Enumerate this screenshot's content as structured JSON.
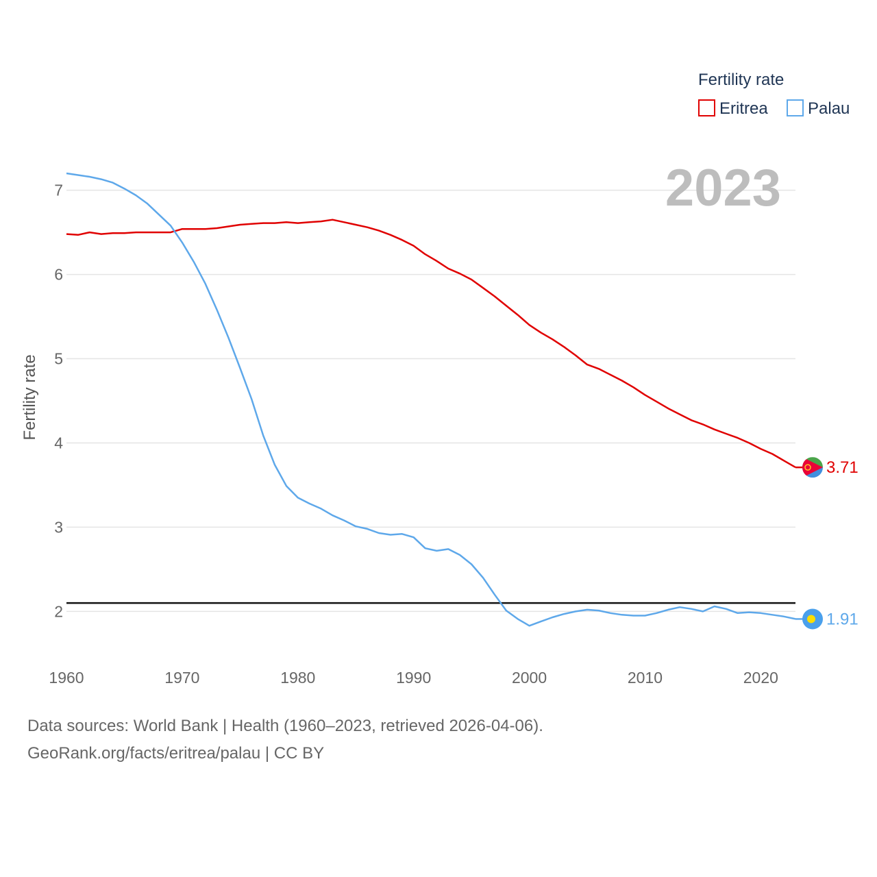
{
  "chart_data": {
    "type": "line",
    "title": "Fertility rate",
    "ylabel": "Fertility rate",
    "xlabel": "",
    "current_year": "2023",
    "xlim": [
      1960,
      2023
    ],
    "ylim": [
      1.45,
      7.55
    ],
    "y_ticks": [
      2,
      3,
      4,
      5,
      6,
      7
    ],
    "x_ticks": [
      1960,
      1970,
      1980,
      1990,
      2000,
      2010,
      2020
    ],
    "reference_line": 2.1,
    "x": [
      1960,
      1961,
      1962,
      1963,
      1964,
      1965,
      1966,
      1967,
      1968,
      1969,
      1970,
      1971,
      1972,
      1973,
      1974,
      1975,
      1976,
      1977,
      1978,
      1979,
      1980,
      1981,
      1982,
      1983,
      1984,
      1985,
      1986,
      1987,
      1988,
      1989,
      1990,
      1991,
      1992,
      1993,
      1994,
      1995,
      1996,
      1997,
      1998,
      1999,
      2000,
      2001,
      2002,
      2003,
      2004,
      2005,
      2006,
      2007,
      2008,
      2009,
      2010,
      2011,
      2012,
      2013,
      2014,
      2015,
      2016,
      2017,
      2018,
      2019,
      2020,
      2021,
      2022,
      2023
    ],
    "series": [
      {
        "name": "Eritrea",
        "color": "#e00000",
        "end_label": "3.71",
        "flag": "eritrea-flag",
        "values": [
          6.48,
          6.47,
          6.5,
          6.48,
          6.49,
          6.49,
          6.5,
          6.5,
          6.5,
          6.5,
          6.54,
          6.54,
          6.54,
          6.55,
          6.57,
          6.59,
          6.6,
          6.61,
          6.61,
          6.62,
          6.61,
          6.62,
          6.63,
          6.65,
          6.62,
          6.59,
          6.56,
          6.52,
          6.47,
          6.41,
          6.34,
          6.24,
          6.16,
          6.07,
          6.01,
          5.94,
          5.84,
          5.74,
          5.63,
          5.52,
          5.4,
          5.31,
          5.23,
          5.14,
          5.04,
          4.93,
          4.88,
          4.81,
          4.74,
          4.66,
          4.57,
          4.49,
          4.41,
          4.34,
          4.27,
          4.22,
          4.16,
          4.11,
          4.06,
          4.0,
          3.93,
          3.87,
          3.79,
          3.71
        ]
      },
      {
        "name": "Palau",
        "color": "#5ea8ea",
        "end_label": "1.91",
        "flag": "palau-flag",
        "values": [
          7.2,
          7.18,
          7.16,
          7.13,
          7.09,
          7.02,
          6.94,
          6.84,
          6.71,
          6.58,
          6.38,
          6.15,
          5.89,
          5.58,
          5.25,
          4.89,
          4.52,
          4.09,
          3.74,
          3.49,
          3.35,
          3.28,
          3.22,
          3.14,
          3.08,
          3.01,
          2.98,
          2.93,
          2.91,
          2.92,
          2.88,
          2.75,
          2.72,
          2.74,
          2.67,
          2.56,
          2.4,
          2.2,
          2.01,
          1.91,
          1.83,
          1.88,
          1.93,
          1.97,
          2.0,
          2.02,
          2.01,
          1.98,
          1.96,
          1.95,
          1.95,
          1.98,
          2.02,
          2.05,
          2.03,
          2.0,
          2.06,
          2.03,
          1.98,
          1.99,
          1.98,
          1.96,
          1.94,
          1.91
        ]
      }
    ]
  },
  "legend": {
    "title": "Fertility rate",
    "items": [
      "Eritrea",
      "Palau"
    ]
  },
  "footer": {
    "line1": "Data sources: World Bank | Health (1960–2023, retrieved 2026-04-06).",
    "line2": "GeoRank.org/facts/eritrea/palau | CC BY"
  }
}
